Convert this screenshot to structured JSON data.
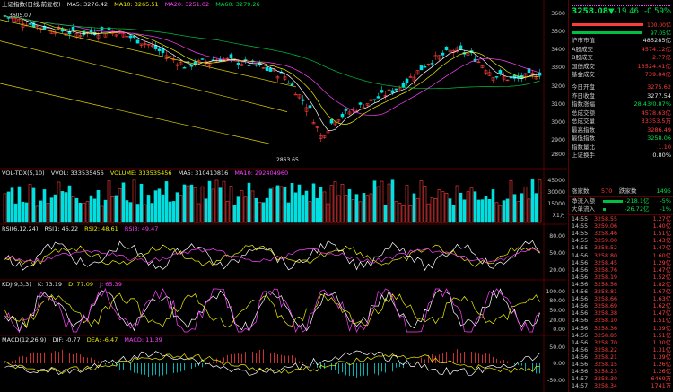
{
  "price_panel": {
    "title": "上证指数(日线,前复权)",
    "ma5": "MA5: 3276.42",
    "ma10": "MA10: 3265.51",
    "ma20": "MA20: 3251.02",
    "ma60": "MA60: 3279.26",
    "high_label": "3605.07",
    "low_label": "2863.65",
    "y_ticks": [
      "3600",
      "3500",
      "3400",
      "3300",
      "3200",
      "3100",
      "3000",
      "2900",
      "2800"
    ]
  },
  "volume_panel": {
    "title": "VOL-TDX(5,10)",
    "vvol": "VVOL: 333535456",
    "volume": "VOLUME: 333535456",
    "ma5": "MA5: 310410816",
    "ma10": "MA10: 292404960",
    "y_ticks": [
      "45000",
      "30000",
      "15000"
    ],
    "unit": "X1万"
  },
  "rsi_panel": {
    "title": "RSI(6,12,24)",
    "rsi1": "RSI1: 46.22",
    "rsi2": "RSI2: 48.61",
    "rsi3": "RSI3: 49.47",
    "y_ticks": [
      "80.00",
      "50.00",
      "20.00"
    ]
  },
  "kdj_panel": {
    "title": "KDJ(9,3,3)",
    "k": "K: 73.19",
    "d": "D: 77.09",
    "j": "J: 65.39",
    "y_ticks": [
      "100.00",
      "80.00",
      "50.00",
      "20.00",
      "0.00"
    ]
  },
  "macd_panel": {
    "title": "MACD(12,26,9)",
    "dif": "DIF: -0.77",
    "dea": "DEA: -6.47",
    "macd": "MACD: 11.39",
    "y_ticks": [
      "50.00",
      "0.00",
      "-50.00"
    ]
  },
  "quote": {
    "price": "3258.08",
    "change": "▼-19.46",
    "pct": "-0.59%",
    "bar1_value": "100.00亿",
    "bar2_value": "97.05亿",
    "rows": [
      {
        "k": "沪市市值",
        "v": "485285亿"
      },
      {
        "k": "A股成交",
        "v": "4574.12亿"
      },
      {
        "k": "B股成交",
        "v": "2.77亿"
      },
      {
        "k": "国债成交",
        "v": "13524.41亿"
      },
      {
        "k": "基金成交",
        "v": "739.84亿"
      }
    ],
    "rows2": [
      {
        "k": "今日开盘",
        "v": "3275.62"
      },
      {
        "k": "昨日收盘",
        "v": "3277.54"
      },
      {
        "k": "指数涨幅",
        "v": "28.43/0.87%"
      },
      {
        "k": "总成交额",
        "v": "4578.63亿"
      },
      {
        "k": "总成交量",
        "v": "33353.5万"
      },
      {
        "k": "最高指数",
        "v": "3286.49"
      },
      {
        "k": "最低指数",
        "v": "3258.06"
      },
      {
        "k": "指数量比",
        "v": "1.10"
      },
      {
        "k": "上证换手",
        "v": "0.80%"
      }
    ],
    "up_label": "涨家数",
    "up_count": "570",
    "down_label": "跌家数",
    "down_count": "1495",
    "inflow_label": "净流入额",
    "inflow_value": "-218.1亿",
    "inflow_pct": "-5%",
    "big_label": "大单流入",
    "big_value": "-26.72亿",
    "big_pct": "-1%"
  },
  "ticks": [
    {
      "t": "14:55",
      "p": "3258.55",
      "v": "1.27亿"
    },
    {
      "t": "14:55",
      "p": "3259.06",
      "v": "1.40亿"
    },
    {
      "t": "14:55",
      "p": "3258.46",
      "v": "1.51亿"
    },
    {
      "t": "14:55",
      "p": "3259.00",
      "v": "1.43亿"
    },
    {
      "t": "14:55",
      "p": "3258.52",
      "v": "1.47亿"
    },
    {
      "t": "14:56",
      "p": "3258.80",
      "v": "1.60亿"
    },
    {
      "t": "14:56",
      "p": "3258.45",
      "v": "1.29亿"
    },
    {
      "t": "14:56",
      "p": "3258.76",
      "v": "1.47亿"
    },
    {
      "t": "14:56",
      "p": "3258.19",
      "v": "1.52亿"
    },
    {
      "t": "14:56",
      "p": "3258.56",
      "v": "1.82亿"
    },
    {
      "t": "14:56",
      "p": "3258.81",
      "v": "1.67亿"
    },
    {
      "t": "14:56",
      "p": "3258.66",
      "v": "1.63亿"
    },
    {
      "t": "14:56",
      "p": "3258.69",
      "v": "1.62亿"
    },
    {
      "t": "14:56",
      "p": "3258.38",
      "v": "1.47亿"
    },
    {
      "t": "14:56",
      "p": "3258.10",
      "v": "1.51亿"
    },
    {
      "t": "14:56",
      "p": "3258.36",
      "v": "1.39亿"
    },
    {
      "t": "14:56",
      "p": "3258.85",
      "v": "1.51亿"
    },
    {
      "t": "14:56",
      "p": "3258.70",
      "v": "1.30亿"
    },
    {
      "t": "14:56",
      "p": "3258.22",
      "v": "1.31亿"
    },
    {
      "t": "14:56",
      "p": "3258.21",
      "v": "1.39亿"
    },
    {
      "t": "14:56",
      "p": "3258.15",
      "v": "1.26亿"
    },
    {
      "t": "14:56",
      "p": "3258.23",
      "v": "1.26亿"
    },
    {
      "t": "14:57",
      "p": "3258.30",
      "v": "6469万"
    },
    {
      "t": "14:57",
      "p": "3258.34",
      "v": "1741万"
    }
  ]
}
